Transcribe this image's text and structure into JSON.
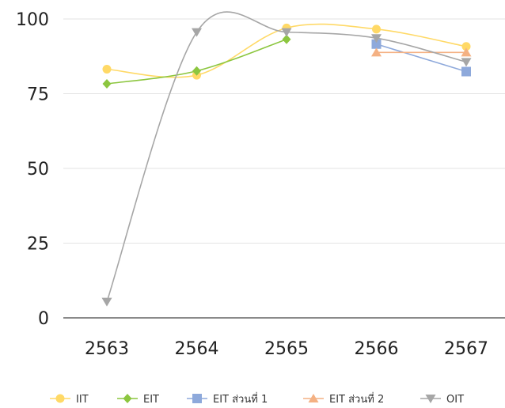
{
  "chart_data": {
    "type": "line",
    "categories": [
      "2563",
      "2564",
      "2565",
      "2566",
      "2567"
    ],
    "ylim": [
      0,
      100
    ],
    "yticks": [
      0,
      25,
      50,
      75,
      100
    ],
    "grid": true,
    "legend_position": "bottom",
    "series": [
      {
        "name": "IIT",
        "color": "#FFD966",
        "marker": "circle",
        "values": [
          83.2,
          81.2,
          97.0,
          96.6,
          90.8
        ]
      },
      {
        "name": "EIT",
        "color": "#8CC63F",
        "marker": "diamond",
        "values": [
          78.3,
          82.6,
          93.2,
          null,
          null
        ]
      },
      {
        "name": "EIT ส่วนที่ 1",
        "color": "#8EA9DB",
        "marker": "square",
        "values": [
          null,
          null,
          null,
          91.6,
          82.4
        ]
      },
      {
        "name": "EIT ส่วนที่ 2",
        "color": "#F4B183",
        "marker": "triangle-up",
        "values": [
          null,
          null,
          null,
          88.8,
          88.8
        ]
      },
      {
        "name": "OIT",
        "color": "#A6A6A6",
        "marker": "triangle-down",
        "values": [
          5.4,
          95.6,
          95.6,
          93.6,
          85.6
        ]
      }
    ]
  }
}
